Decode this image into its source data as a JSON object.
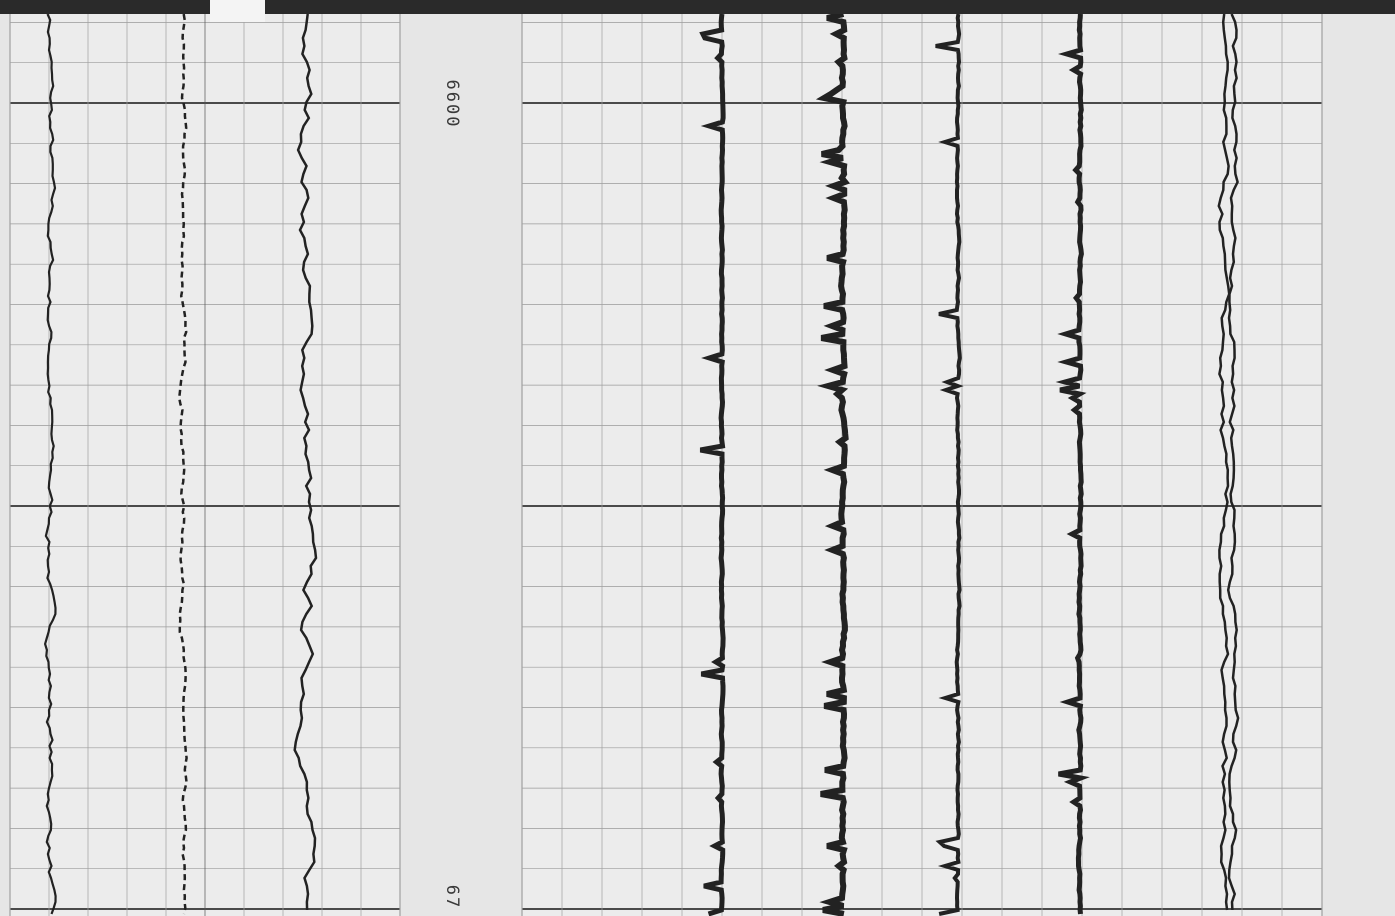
{
  "depth_labels": [
    "6600",
    "67"
  ]
}
